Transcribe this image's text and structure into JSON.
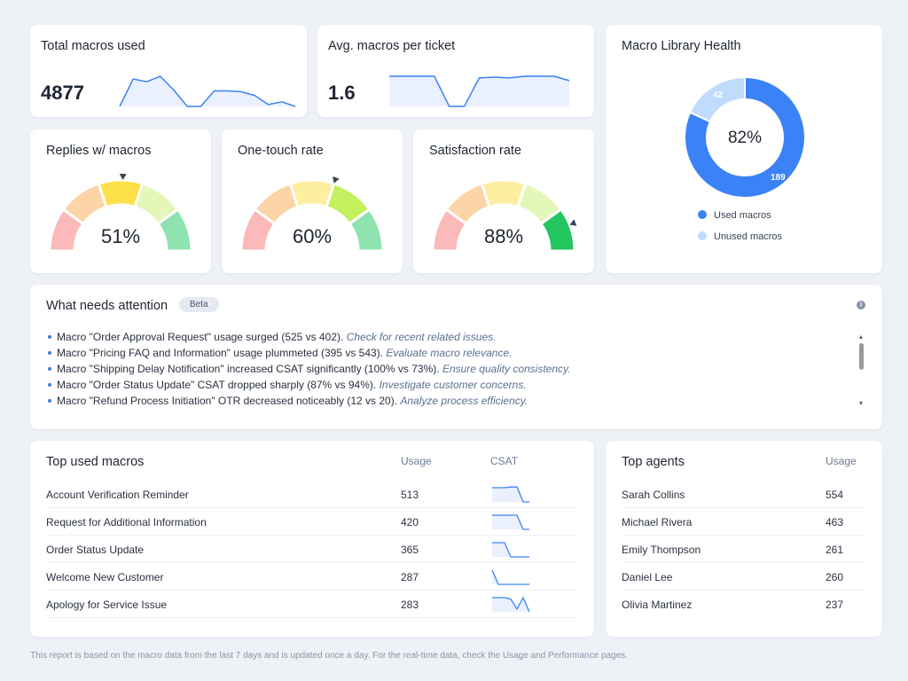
{
  "total": {
    "title": "Total macros used",
    "value": "4877",
    "spark": [
      0,
      30,
      27,
      33,
      18,
      0,
      0,
      17,
      17,
      16,
      12,
      2,
      5,
      0
    ]
  },
  "avg": {
    "title": "Avg. macros per ticket",
    "value": "1.6",
    "spark": [
      35,
      35,
      35,
      35,
      0,
      0,
      33,
      34,
      33,
      35,
      35,
      35,
      30
    ]
  },
  "gauges": [
    {
      "title": "Replies w/ macros",
      "value": "51%",
      "pct": 51,
      "active": 2
    },
    {
      "title": "One-touch rate",
      "value": "60%",
      "pct": 60,
      "active": 3
    },
    {
      "title": "Satisfaction rate",
      "value": "88%",
      "pct": 88,
      "active": 4
    }
  ],
  "gauge_colors": {
    "inactive": [
      "#fbb9b9",
      "#fdd3a8",
      "#fdeea0",
      "#e3f7b8",
      "#8fe3b0"
    ],
    "active": [
      "#f87171",
      "#fb923c",
      "#fde047",
      "#c3f05e",
      "#22c55e"
    ]
  },
  "library": {
    "title": "Macro Library Health",
    "center": "82%",
    "used": 189,
    "unused": 42,
    "used_label": "189",
    "unused_label": "42",
    "legend": [
      "Used macros",
      "Unused macros"
    ],
    "colors": [
      "#3b82f6",
      "#bfdbfe"
    ]
  },
  "attention": {
    "title": "What needs attention",
    "badge": "Beta",
    "items": [
      {
        "text": "Macro \"Order Approval Request\" usage surged (525 vs 402). ",
        "hint": "Check for recent related issues."
      },
      {
        "text": "Macro \"Pricing FAQ and Information\" usage plummeted (395 vs 543). ",
        "hint": "Evaluate macro relevance."
      },
      {
        "text": "Macro \"Shipping Delay Notification\" increased CSAT significantly (100% vs 73%). ",
        "hint": "Ensure quality consistency."
      },
      {
        "text": "Macro \"Order Status Update\" CSAT dropped sharply (87% vs 94%). ",
        "hint": "Investigate customer concerns."
      },
      {
        "text": "Macro \"Refund Process Initiation\" OTR decreased noticeably (12 vs 20). ",
        "hint": "Analyze process efficiency."
      }
    ]
  },
  "top_macros": {
    "title": "Top used macros",
    "col_usage": "Usage",
    "col_csat": "CSAT",
    "rows": [
      {
        "name": "Account Verification Reminder",
        "usage": "513",
        "csat": [
          1,
          1,
          1,
          1.05,
          1.05,
          0,
          0
        ]
      },
      {
        "name": "Request for Additional Information",
        "usage": "420",
        "csat": [
          1,
          1,
          1,
          1,
          1,
          0,
          0
        ]
      },
      {
        "name": "Order Status Update",
        "usage": "365",
        "csat": [
          1,
          1,
          1,
          0,
          0,
          0,
          0
        ]
      },
      {
        "name": "Welcome New Customer",
        "usage": "287",
        "csat": [
          1,
          0,
          0,
          0,
          0,
          0,
          0
        ]
      },
      {
        "name": "Apology for Service Issue",
        "usage": "283",
        "csat": [
          1,
          1,
          1,
          0.9,
          0.2,
          1,
          0
        ]
      }
    ]
  },
  "top_agents": {
    "title": "Top agents",
    "col_usage": "Usage",
    "rows": [
      {
        "name": "Sarah Collins",
        "usage": "554"
      },
      {
        "name": "Michael Rivera",
        "usage": "463"
      },
      {
        "name": "Emily Thompson",
        "usage": "261"
      },
      {
        "name": "Daniel Lee",
        "usage": "260"
      },
      {
        "name": "Olivia Martinez",
        "usage": "237"
      }
    ]
  },
  "footer": "This report is based on the macro data from the last 7 days and is updated once a day. For the real-time data, check the Usage and Performance pages."
}
